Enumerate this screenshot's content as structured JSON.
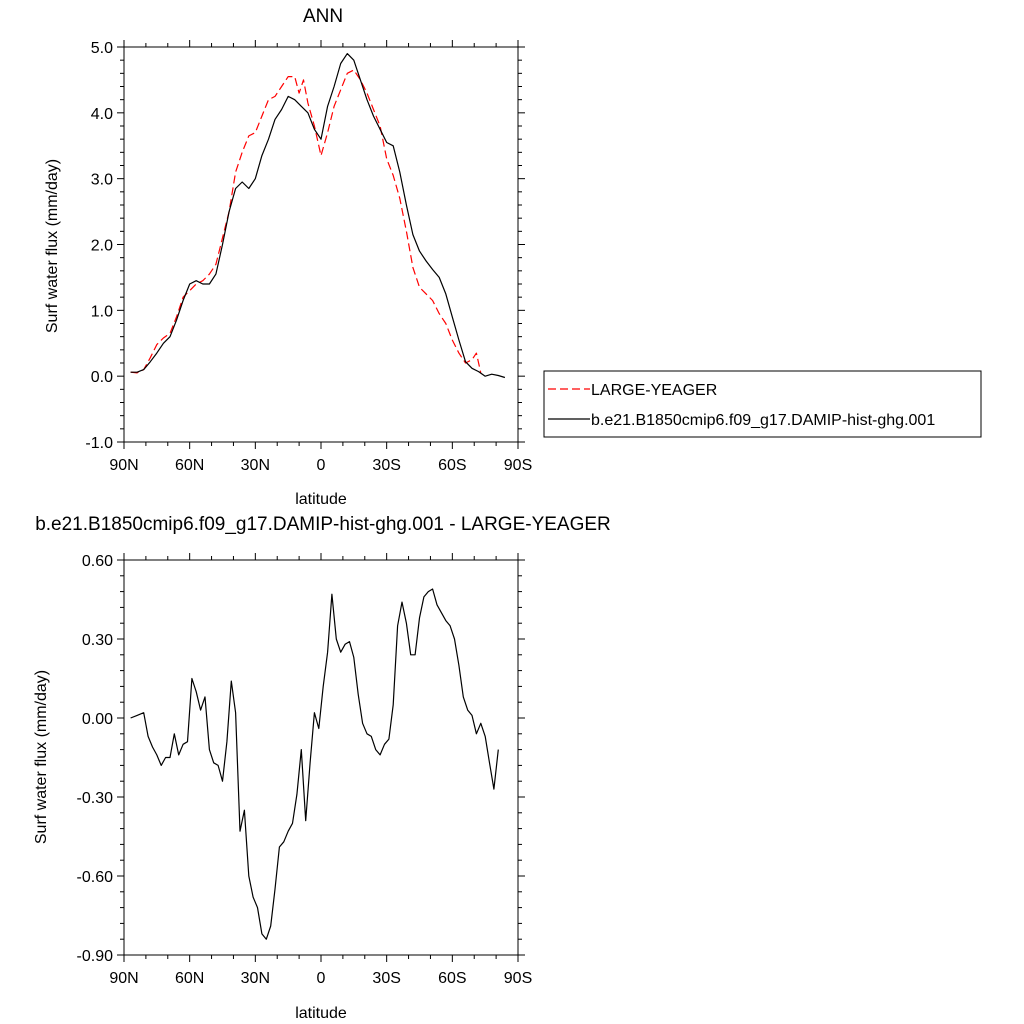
{
  "chart_data": [
    {
      "type": "line",
      "title": "ANN",
      "xlabel": "latitude",
      "ylabel": "Surf water flux (mm/day)",
      "xlim": [
        90,
        -90
      ],
      "ylim": [
        -1.0,
        5.0
      ],
      "xticks": [
        90,
        60,
        30,
        0,
        -30,
        -60,
        -90
      ],
      "xtick_labels": [
        "90N",
        "60N",
        "30N",
        "0",
        "30S",
        "60S",
        "90S"
      ],
      "yticks": [
        -1.0,
        0.0,
        1.0,
        2.0,
        3.0,
        4.0,
        5.0
      ],
      "ytick_labels": [
        "-1.0",
        "0.0",
        "1.0",
        "2.0",
        "3.0",
        "4.0",
        "5.0"
      ],
      "legend_position": "right",
      "series": [
        {
          "name": "LARGE-YEAGER",
          "color": "#ff0000",
          "dash": "dashed",
          "points": [
            [
              87,
              0.06
            ],
            [
              84,
              0.05
            ],
            [
              81,
              0.1
            ],
            [
              78,
              0.28
            ],
            [
              75,
              0.48
            ],
            [
              72,
              0.58
            ],
            [
              69,
              0.65
            ],
            [
              66,
              0.9
            ],
            [
              63,
              1.2
            ],
            [
              60,
              1.3
            ],
            [
              57,
              1.4
            ],
            [
              54,
              1.45
            ],
            [
              51,
              1.55
            ],
            [
              48,
              1.7
            ],
            [
              45,
              2.1
            ],
            [
              42,
              2.5
            ],
            [
              39,
              3.1
            ],
            [
              36,
              3.4
            ],
            [
              33,
              3.65
            ],
            [
              30,
              3.7
            ],
            [
              27,
              3.95
            ],
            [
              24,
              4.2
            ],
            [
              21,
              4.25
            ],
            [
              18,
              4.4
            ],
            [
              15,
              4.55
            ],
            [
              12,
              4.55
            ],
            [
              10,
              4.3
            ],
            [
              8,
              4.5
            ],
            [
              6,
              4.15
            ],
            [
              3,
              3.8
            ],
            [
              0,
              3.35
            ],
            [
              -3,
              3.7
            ],
            [
              -6,
              4.1
            ],
            [
              -9,
              4.35
            ],
            [
              -12,
              4.6
            ],
            [
              -15,
              4.65
            ],
            [
              -18,
              4.5
            ],
            [
              -21,
              4.3
            ],
            [
              -24,
              4.05
            ],
            [
              -27,
              3.8
            ],
            [
              -30,
              3.3
            ],
            [
              -33,
              3.05
            ],
            [
              -36,
              2.7
            ],
            [
              -39,
              2.2
            ],
            [
              -42,
              1.65
            ],
            [
              -45,
              1.35
            ],
            [
              -48,
              1.25
            ],
            [
              -51,
              1.15
            ],
            [
              -54,
              0.95
            ],
            [
              -57,
              0.8
            ],
            [
              -60,
              0.55
            ],
            [
              -63,
              0.35
            ],
            [
              -66,
              0.2
            ],
            [
              -69,
              0.25
            ],
            [
              -71,
              0.35
            ],
            [
              -73,
              0.05
            ]
          ]
        },
        {
          "name": "b.e21.B1850cmip6.f09_g17.DAMIP-hist-ghg.001",
          "color": "#000000",
          "dash": "solid",
          "points": [
            [
              87,
              0.06
            ],
            [
              84,
              0.06
            ],
            [
              81,
              0.1
            ],
            [
              78,
              0.22
            ],
            [
              75,
              0.35
            ],
            [
              72,
              0.5
            ],
            [
              69,
              0.6
            ],
            [
              66,
              0.85
            ],
            [
              63,
              1.15
            ],
            [
              60,
              1.4
            ],
            [
              57,
              1.45
            ],
            [
              54,
              1.4
            ],
            [
              51,
              1.4
            ],
            [
              48,
              1.55
            ],
            [
              45,
              2.0
            ],
            [
              42,
              2.5
            ],
            [
              39,
              2.85
            ],
            [
              36,
              2.95
            ],
            [
              33,
              2.85
            ],
            [
              30,
              3.0
            ],
            [
              27,
              3.35
            ],
            [
              24,
              3.6
            ],
            [
              21,
              3.9
            ],
            [
              18,
              4.05
            ],
            [
              15,
              4.25
            ],
            [
              12,
              4.2
            ],
            [
              9,
              4.1
            ],
            [
              6,
              4.0
            ],
            [
              3,
              3.75
            ],
            [
              0,
              3.6
            ],
            [
              -3,
              4.1
            ],
            [
              -6,
              4.4
            ],
            [
              -9,
              4.75
            ],
            [
              -12,
              4.9
            ],
            [
              -15,
              4.8
            ],
            [
              -18,
              4.5
            ],
            [
              -21,
              4.2
            ],
            [
              -24,
              3.95
            ],
            [
              -27,
              3.75
            ],
            [
              -30,
              3.55
            ],
            [
              -33,
              3.5
            ],
            [
              -36,
              3.1
            ],
            [
              -39,
              2.6
            ],
            [
              -42,
              2.15
            ],
            [
              -45,
              1.9
            ],
            [
              -48,
              1.75
            ],
            [
              -51,
              1.62
            ],
            [
              -54,
              1.5
            ],
            [
              -57,
              1.25
            ],
            [
              -60,
              0.9
            ],
            [
              -63,
              0.55
            ],
            [
              -66,
              0.22
            ],
            [
              -69,
              0.12
            ],
            [
              -72,
              0.07
            ],
            [
              -75,
              0.0
            ],
            [
              -78,
              0.03
            ],
            [
              -81,
              0.01
            ],
            [
              -84,
              -0.02
            ]
          ]
        }
      ]
    },
    {
      "type": "line",
      "title": "b.e21.B1850cmip6.f09_g17.DAMIP-hist-ghg.001 - LARGE-YEAGER",
      "xlabel": "latitude",
      "ylabel": "Surf water flux (mm/day)",
      "xlim": [
        90,
        -90
      ],
      "ylim": [
        -0.9,
        0.6
      ],
      "xticks": [
        90,
        60,
        30,
        0,
        -30,
        -60,
        -90
      ],
      "xtick_labels": [
        "90N",
        "60N",
        "30N",
        "0",
        "30S",
        "60S",
        "90S"
      ],
      "yticks": [
        -0.9,
        -0.6,
        -0.3,
        0.0,
        0.3,
        0.6
      ],
      "ytick_labels": [
        "-0.90",
        "-0.60",
        "-0.30",
        "0.00",
        "0.30",
        "0.60"
      ],
      "series": [
        {
          "color": "#000000",
          "dash": "solid",
          "points": [
            [
              87,
              0.0
            ],
            [
              84,
              0.01
            ],
            [
              81,
              0.02
            ],
            [
              79,
              -0.07
            ],
            [
              77,
              -0.11
            ],
            [
              75,
              -0.14
            ],
            [
              73,
              -0.18
            ],
            [
              71,
              -0.15
            ],
            [
              69,
              -0.15
            ],
            [
              67,
              -0.06
            ],
            [
              65,
              -0.14
            ],
            [
              63,
              -0.1
            ],
            [
              61,
              -0.09
            ],
            [
              59,
              0.15
            ],
            [
              57,
              0.1
            ],
            [
              55,
              0.03
            ],
            [
              53,
              0.08
            ],
            [
              51,
              -0.12
            ],
            [
              49,
              -0.17
            ],
            [
              47,
              -0.18
            ],
            [
              45,
              -0.24
            ],
            [
              43,
              -0.09
            ],
            [
              41,
              0.14
            ],
            [
              39,
              0.02
            ],
            [
              37,
              -0.43
            ],
            [
              35,
              -0.35
            ],
            [
              33,
              -0.6
            ],
            [
              31,
              -0.68
            ],
            [
              29,
              -0.72
            ],
            [
              27,
              -0.82
            ],
            [
              25,
              -0.84
            ],
            [
              23,
              -0.79
            ],
            [
              21,
              -0.65
            ],
            [
              19,
              -0.49
            ],
            [
              17,
              -0.47
            ],
            [
              15,
              -0.43
            ],
            [
              13,
              -0.4
            ],
            [
              11,
              -0.29
            ],
            [
              9,
              -0.12
            ],
            [
              7,
              -0.39
            ],
            [
              5,
              -0.17
            ],
            [
              3,
              0.02
            ],
            [
              1,
              -0.04
            ],
            [
              -1,
              0.12
            ],
            [
              -3,
              0.25
            ],
            [
              -5,
              0.47
            ],
            [
              -7,
              0.3
            ],
            [
              -9,
              0.25
            ],
            [
              -11,
              0.28
            ],
            [
              -13,
              0.29
            ],
            [
              -15,
              0.23
            ],
            [
              -17,
              0.09
            ],
            [
              -19,
              -0.02
            ],
            [
              -21,
              -0.06
            ],
            [
              -23,
              -0.07
            ],
            [
              -25,
              -0.12
            ],
            [
              -27,
              -0.14
            ],
            [
              -29,
              -0.1
            ],
            [
              -31,
              -0.08
            ],
            [
              -33,
              0.05
            ],
            [
              -35,
              0.35
            ],
            [
              -37,
              0.44
            ],
            [
              -39,
              0.36
            ],
            [
              -41,
              0.24
            ],
            [
              -43,
              0.24
            ],
            [
              -45,
              0.38
            ],
            [
              -47,
              0.46
            ],
            [
              -49,
              0.48
            ],
            [
              -51,
              0.49
            ],
            [
              -53,
              0.43
            ],
            [
              -55,
              0.4
            ],
            [
              -57,
              0.37
            ],
            [
              -59,
              0.35
            ],
            [
              -61,
              0.3
            ],
            [
              -63,
              0.2
            ],
            [
              -65,
              0.08
            ],
            [
              -67,
              0.03
            ],
            [
              -69,
              0.01
            ],
            [
              -71,
              -0.06
            ],
            [
              -73,
              -0.02
            ],
            [
              -75,
              -0.07
            ],
            [
              -77,
              -0.17
            ],
            [
              -79,
              -0.27
            ],
            [
              -81,
              -0.12
            ]
          ]
        }
      ]
    }
  ]
}
